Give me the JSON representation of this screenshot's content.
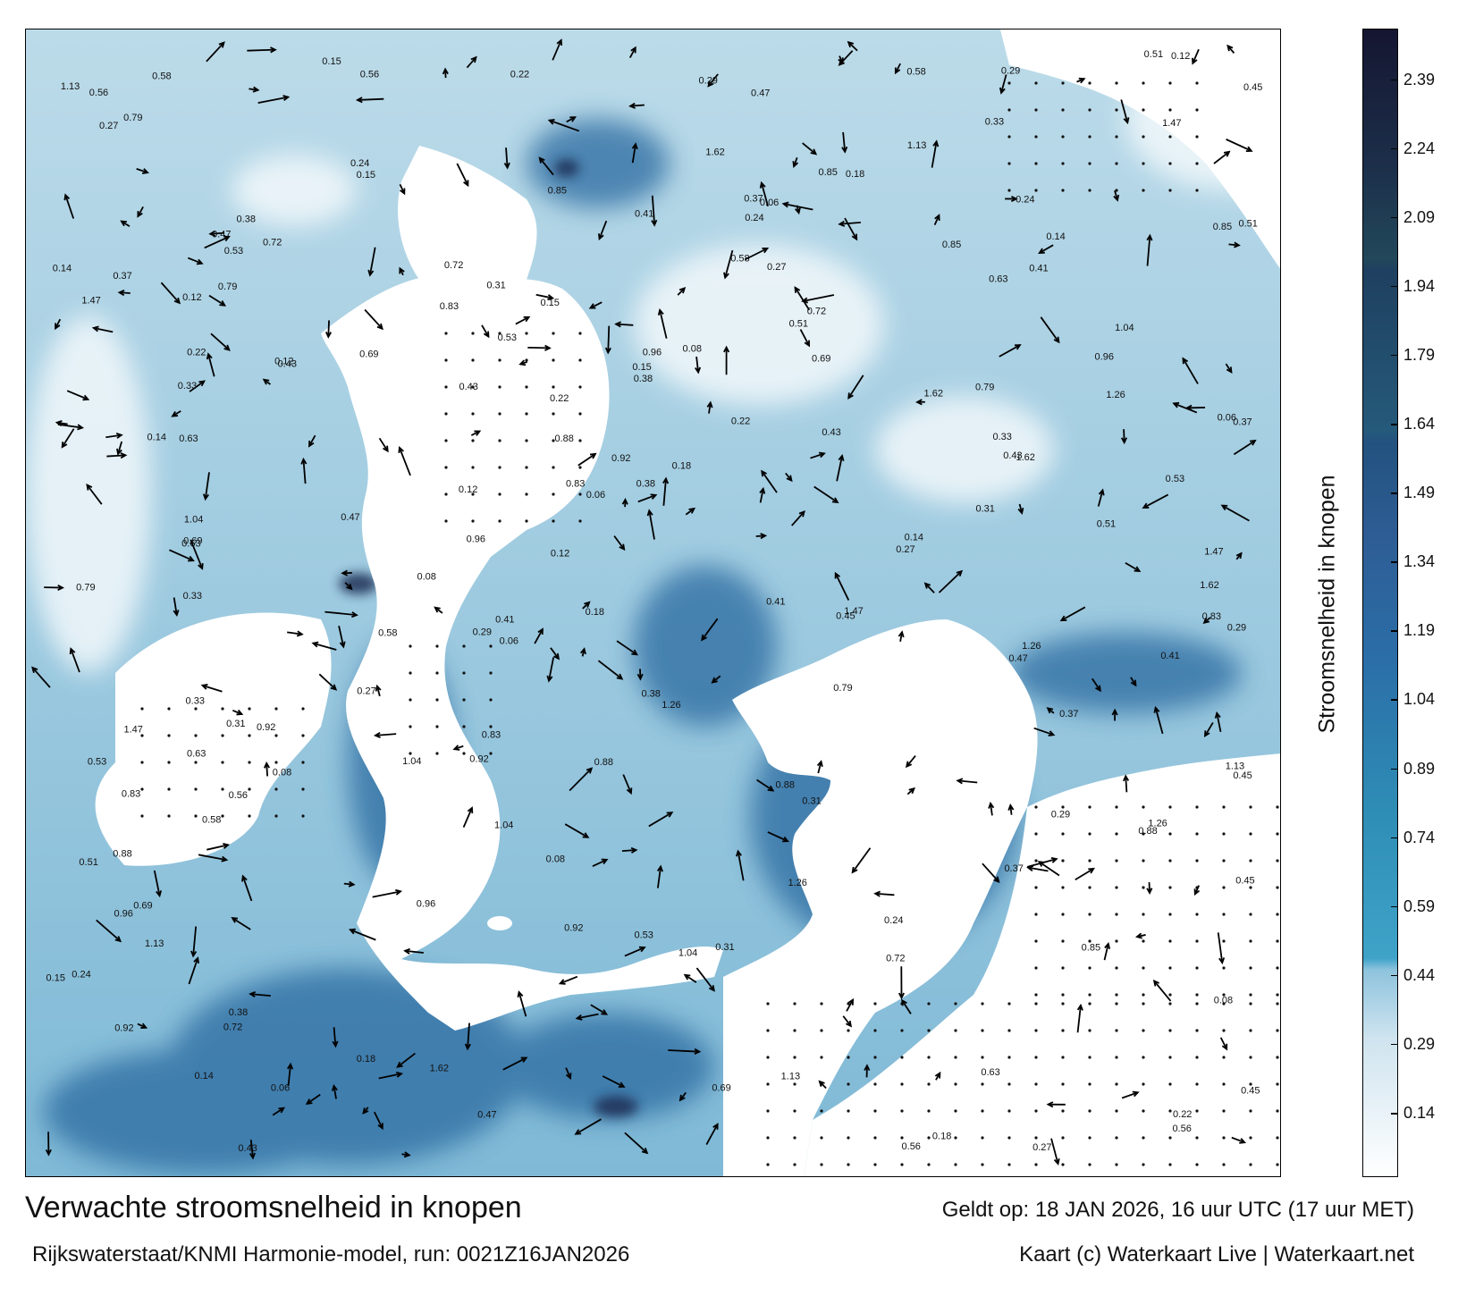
{
  "map": {
    "colorbar_label": "Stroomsnelheid in knopen",
    "colorbar_ticks": [
      "2.39",
      "2.24",
      "2.09",
      "1.94",
      "1.79",
      "1.64",
      "1.49",
      "1.34",
      "1.19",
      "1.04",
      "0.89",
      "0.74",
      "0.59",
      "0.44",
      "0.29",
      "0.14"
    ],
    "colorbar_range": [
      0,
      2.5
    ],
    "colors": {
      "land": "#ffffff",
      "low": "#eef6fa",
      "mid": "#6fb2d0",
      "high": "#2b6ea8",
      "max": "#1a1a3a",
      "arrow": "#000000"
    },
    "sample_labels": [
      "0.29",
      "0.31",
      "0.47",
      "1.04",
      "0.88",
      "0.63",
      "1.13",
      "0.92",
      "0.85",
      "0.58",
      "0.37",
      "0.53",
      "0.12",
      "0.22",
      "0.45",
      "1.26",
      "0.79",
      "0.41",
      "0.69",
      "0.18",
      "0.08",
      "0.15",
      "0.72",
      "0.33",
      "1.47",
      "0.51",
      "0.24",
      "0.96",
      "0.06",
      "0.27",
      "1.62",
      "0.43",
      "0.38",
      "0.83",
      "0.14",
      "0.56"
    ]
  },
  "footer": {
    "title": "Verwachte stroomsnelheid in knopen",
    "valid": "Geldt op: 18 JAN 2026, 16 uur UTC (17 uur MET)",
    "source": "Rijkswaterstaat/KNMI Harmonie-model, run: 0021Z16JAN2026",
    "credit": "Kaart (c) Waterkaart Live | Waterkaart.net"
  }
}
